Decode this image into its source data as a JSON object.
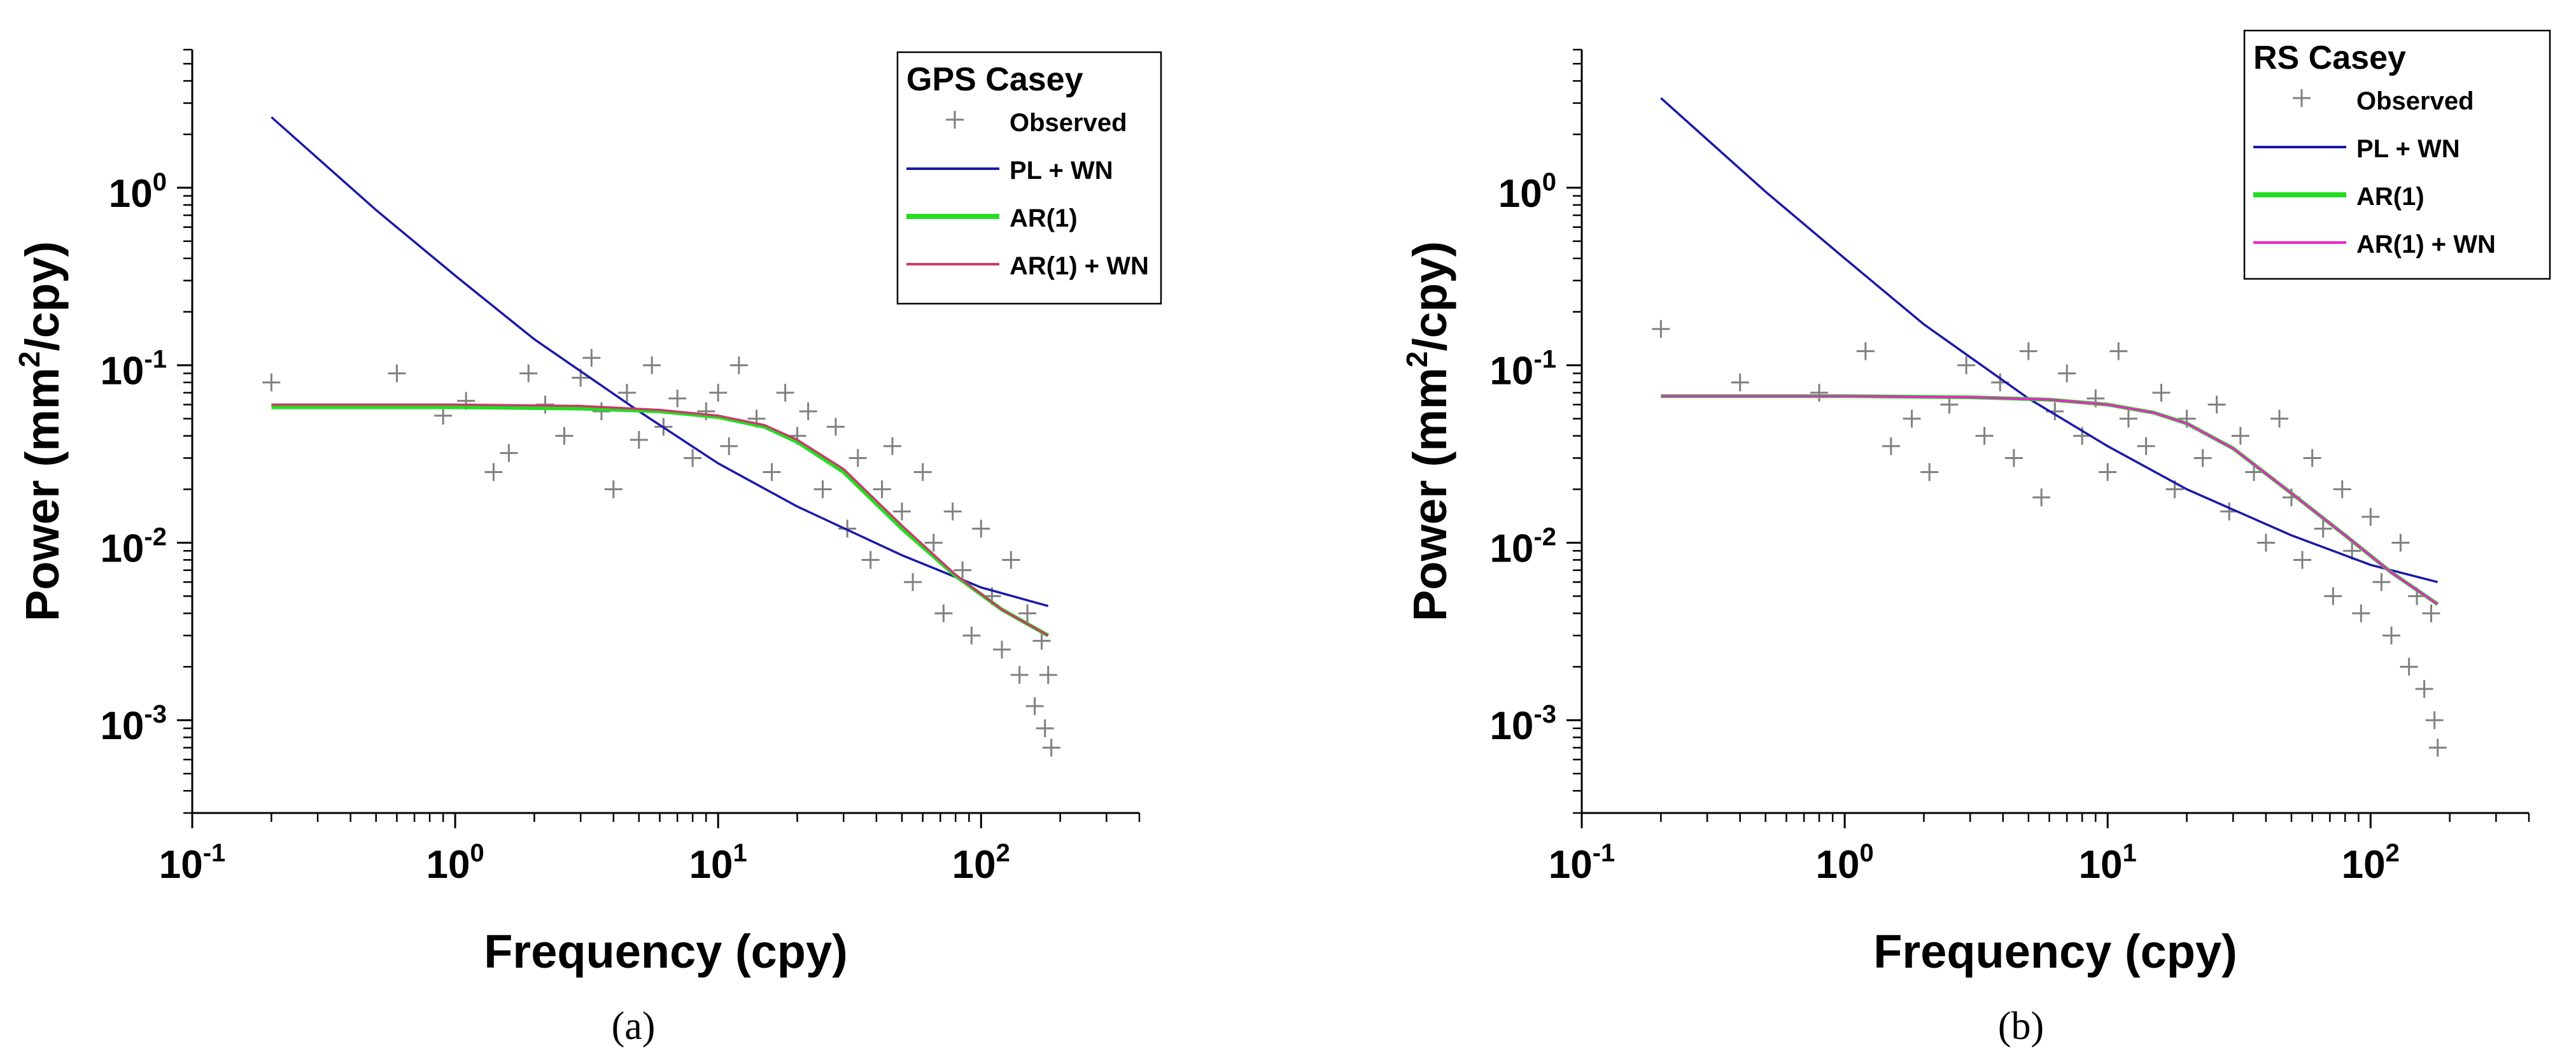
{
  "chart_data": [
    {
      "type": "line",
      "panel": "(a)",
      "legend_title": "GPS Casey",
      "xlabel": "Frequency (cpy)",
      "ylabel_pre": "Power (mm",
      "ylabel_sup": "2",
      "ylabel_post": "/cpy)",
      "x_scale": "log",
      "y_scale": "log",
      "xlim": [
        0.1,
        400
      ],
      "ylim": [
        0.0003,
        6
      ],
      "x_ticks": [
        {
          "base": "10",
          "exp": "-1",
          "v": 0.1
        },
        {
          "base": "10",
          "exp": "0",
          "v": 1
        },
        {
          "base": "10",
          "exp": "1",
          "v": 10
        },
        {
          "base": "10",
          "exp": "2",
          "v": 100
        }
      ],
      "y_ticks": [
        {
          "base": "10",
          "exp": "-3",
          "v": 0.001
        },
        {
          "base": "10",
          "exp": "-2",
          "v": 0.01
        },
        {
          "base": "10",
          "exp": "-1",
          "v": 0.1
        },
        {
          "base": "10",
          "exp": "0",
          "v": 1
        }
      ],
      "legend_position": "top-right",
      "grid": false,
      "series": [
        {
          "name": "Observed",
          "kind": "scatter",
          "color": "#808080",
          "points": [
            [
              0.2,
              0.08
            ],
            [
              0.6,
              0.09
            ],
            [
              0.9,
              0.052
            ],
            [
              1.1,
              0.063
            ],
            [
              1.4,
              0.025
            ],
            [
              1.6,
              0.032
            ],
            [
              1.9,
              0.09
            ],
            [
              2.2,
              0.06
            ],
            [
              2.6,
              0.04
            ],
            [
              3.0,
              0.085
            ],
            [
              3.3,
              0.11
            ],
            [
              3.6,
              0.055
            ],
            [
              4.0,
              0.02
            ],
            [
              4.5,
              0.07
            ],
            [
              5.0,
              0.038
            ],
            [
              5.6,
              0.1
            ],
            [
              6.2,
              0.045
            ],
            [
              7.0,
              0.065
            ],
            [
              8.0,
              0.03
            ],
            [
              9.0,
              0.055
            ],
            [
              10.0,
              0.07
            ],
            [
              11.0,
              0.035
            ],
            [
              12.0,
              0.1
            ],
            [
              14.0,
              0.05
            ],
            [
              16.0,
              0.025
            ],
            [
              18.0,
              0.07
            ],
            [
              20.0,
              0.04
            ],
            [
              22.0,
              0.055
            ],
            [
              25.0,
              0.02
            ],
            [
              28.0,
              0.045
            ],
            [
              31.0,
              0.012
            ],
            [
              34.0,
              0.03
            ],
            [
              38.0,
              0.008
            ],
            [
              42.0,
              0.02
            ],
            [
              46.0,
              0.035
            ],
            [
              50.0,
              0.015
            ],
            [
              55.0,
              0.006
            ],
            [
              60.0,
              0.025
            ],
            [
              66.0,
              0.01
            ],
            [
              72.0,
              0.004
            ],
            [
              78.0,
              0.015
            ],
            [
              85.0,
              0.007
            ],
            [
              92.0,
              0.003
            ],
            [
              100.0,
              0.012
            ],
            [
              110.0,
              0.005
            ],
            [
              120.0,
              0.0025
            ],
            [
              130.0,
              0.008
            ],
            [
              140.0,
              0.0018
            ],
            [
              150.0,
              0.004
            ],
            [
              160.0,
              0.0012
            ],
            [
              170.0,
              0.0028
            ],
            [
              175.0,
              0.0009
            ],
            [
              180.0,
              0.0018
            ],
            [
              185.0,
              0.0007
            ]
          ]
        },
        {
          "name": "PL + WN",
          "kind": "line",
          "color": "#1a1aa8",
          "x": [
            0.2,
            0.5,
            1.0,
            2.0,
            5.0,
            10.0,
            20.0,
            50.0,
            100.0,
            180.0
          ],
          "y": [
            2.5,
            0.75,
            0.32,
            0.14,
            0.055,
            0.028,
            0.016,
            0.0085,
            0.0056,
            0.0044
          ]
        },
        {
          "name": "AR(1)",
          "kind": "line",
          "color": "#22dd22",
          "x": [
            0.2,
            1.0,
            3.0,
            6.0,
            10.0,
            15.0,
            20.0,
            30.0,
            50.0,
            80.0,
            120.0,
            180.0
          ],
          "y": [
            0.058,
            0.058,
            0.057,
            0.055,
            0.051,
            0.045,
            0.037,
            0.025,
            0.012,
            0.0065,
            0.0042,
            0.003
          ]
        },
        {
          "name": "AR(1) + WN",
          "kind": "line",
          "color": "#c93a6a",
          "x": [
            0.2,
            1.0,
            3.0,
            6.0,
            10.0,
            15.0,
            20.0,
            30.0,
            50.0,
            80.0,
            120.0,
            180.0
          ],
          "y": [
            0.06,
            0.06,
            0.059,
            0.056,
            0.052,
            0.046,
            0.038,
            0.026,
            0.0125,
            0.0066,
            0.0042,
            0.003
          ]
        }
      ]
    },
    {
      "type": "line",
      "panel": "(b)",
      "legend_title": "RS Casey",
      "xlabel": "Frequency (cpy)",
      "ylabel_pre": "Power (mm",
      "ylabel_sup": "2",
      "ylabel_post": "/cpy)",
      "x_scale": "log",
      "y_scale": "log",
      "xlim": [
        0.1,
        400
      ],
      "ylim": [
        0.0003,
        6
      ],
      "x_ticks": [
        {
          "base": "10",
          "exp": "-1",
          "v": 0.1
        },
        {
          "base": "10",
          "exp": "0",
          "v": 1
        },
        {
          "base": "10",
          "exp": "1",
          "v": 10
        },
        {
          "base": "10",
          "exp": "2",
          "v": 100
        }
      ],
      "y_ticks": [
        {
          "base": "10",
          "exp": "-3",
          "v": 0.001
        },
        {
          "base": "10",
          "exp": "-2",
          "v": 0.01
        },
        {
          "base": "10",
          "exp": "-1",
          "v": 0.1
        },
        {
          "base": "10",
          "exp": "0",
          "v": 1
        }
      ],
      "legend_position": "top-right",
      "grid": false,
      "series": [
        {
          "name": "Observed",
          "kind": "scatter",
          "color": "#808080",
          "points": [
            [
              0.2,
              0.16
            ],
            [
              0.4,
              0.08
            ],
            [
              0.8,
              0.07
            ],
            [
              1.2,
              0.12
            ],
            [
              1.5,
              0.035
            ],
            [
              1.8,
              0.05
            ],
            [
              2.1,
              0.025
            ],
            [
              2.5,
              0.06
            ],
            [
              2.9,
              0.1
            ],
            [
              3.4,
              0.04
            ],
            [
              3.9,
              0.08
            ],
            [
              4.4,
              0.03
            ],
            [
              5.0,
              0.12
            ],
            [
              5.6,
              0.018
            ],
            [
              6.3,
              0.055
            ],
            [
              7.0,
              0.09
            ],
            [
              8.0,
              0.04
            ],
            [
              9.0,
              0.065
            ],
            [
              10.0,
              0.025
            ],
            [
              11.0,
              0.12
            ],
            [
              12.0,
              0.05
            ],
            [
              14.0,
              0.035
            ],
            [
              16.0,
              0.07
            ],
            [
              18.0,
              0.02
            ],
            [
              20.0,
              0.05
            ],
            [
              23.0,
              0.03
            ],
            [
              26.0,
              0.06
            ],
            [
              29.0,
              0.015
            ],
            [
              32.0,
              0.04
            ],
            [
              36.0,
              0.025
            ],
            [
              40.0,
              0.01
            ],
            [
              45.0,
              0.05
            ],
            [
              50.0,
              0.018
            ],
            [
              55.0,
              0.008
            ],
            [
              60.0,
              0.03
            ],
            [
              66.0,
              0.012
            ],
            [
              72.0,
              0.005
            ],
            [
              78.0,
              0.02
            ],
            [
              85.0,
              0.009
            ],
            [
              92.0,
              0.004
            ],
            [
              100.0,
              0.014
            ],
            [
              110.0,
              0.006
            ],
            [
              120.0,
              0.003
            ],
            [
              130.0,
              0.01
            ],
            [
              140.0,
              0.002
            ],
            [
              150.0,
              0.005
            ],
            [
              160.0,
              0.0015
            ],
            [
              170.0,
              0.004
            ],
            [
              175.0,
              0.001
            ],
            [
              180.0,
              0.0007
            ]
          ]
        },
        {
          "name": "PL + WN",
          "kind": "line",
          "color": "#1a1aa8",
          "x": [
            0.2,
            0.5,
            1.0,
            2.0,
            5.0,
            10.0,
            20.0,
            50.0,
            100.0,
            180.0
          ],
          "y": [
            3.2,
            0.95,
            0.4,
            0.17,
            0.065,
            0.035,
            0.02,
            0.011,
            0.0075,
            0.006
          ]
        },
        {
          "name": "AR(1)",
          "kind": "line",
          "color": "#22dd22",
          "x": [
            0.2,
            1.0,
            3.0,
            6.0,
            10.0,
            15.0,
            20.0,
            30.0,
            50.0,
            80.0,
            120.0,
            180.0
          ],
          "y": [
            0.067,
            0.067,
            0.066,
            0.064,
            0.06,
            0.054,
            0.047,
            0.034,
            0.019,
            0.011,
            0.0068,
            0.0045
          ]
        },
        {
          "name": "AR(1) + WN",
          "kind": "line",
          "color": "#ee22cc",
          "x": [
            0.2,
            1.0,
            3.0,
            6.0,
            10.0,
            15.0,
            20.0,
            30.0,
            50.0,
            80.0,
            120.0,
            180.0
          ],
          "y": [
            0.067,
            0.067,
            0.066,
            0.064,
            0.06,
            0.054,
            0.047,
            0.034,
            0.019,
            0.011,
            0.0068,
            0.0045
          ]
        }
      ]
    }
  ]
}
